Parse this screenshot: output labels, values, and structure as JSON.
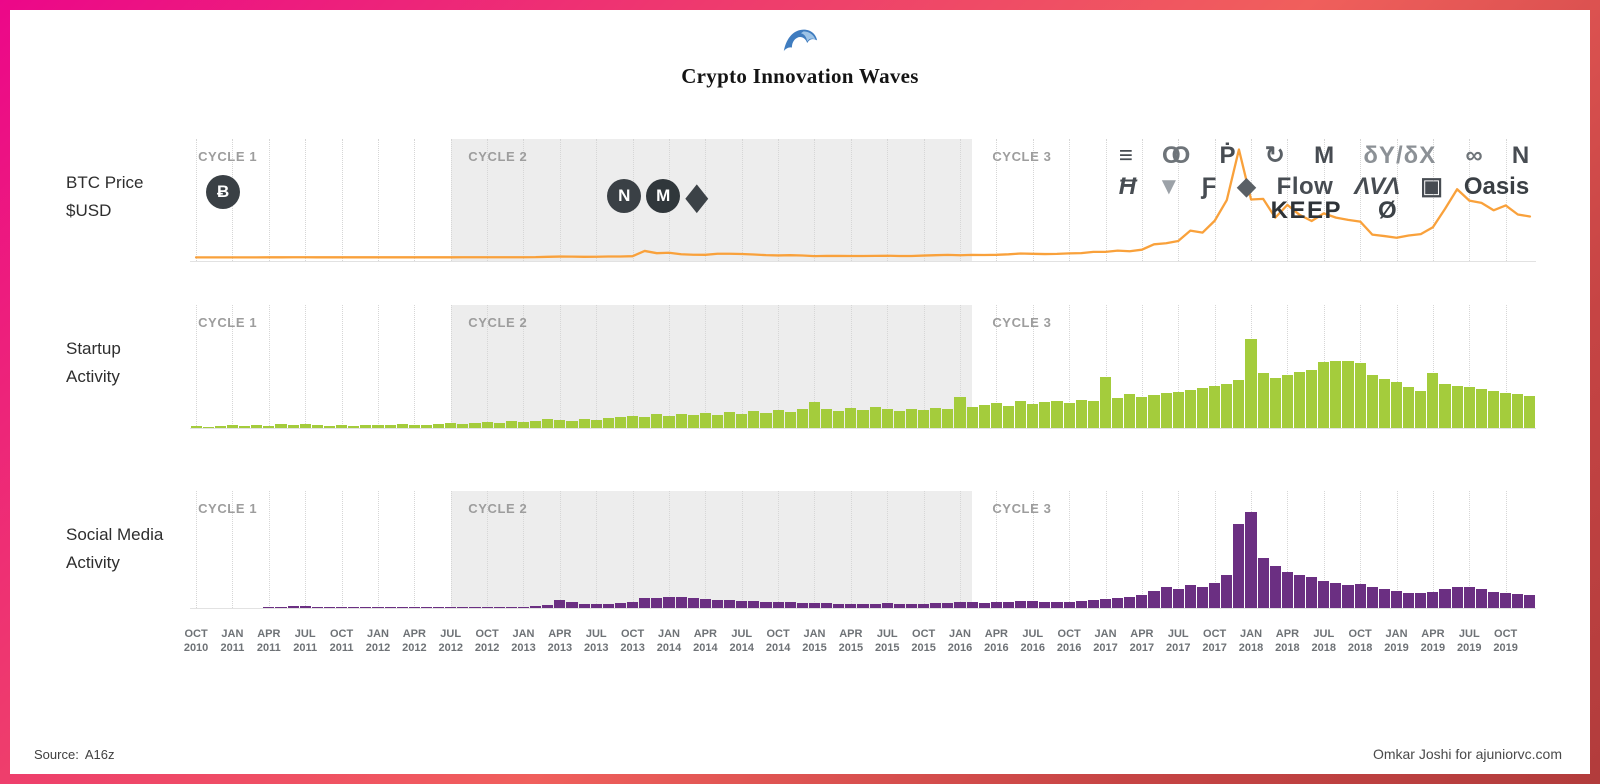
{
  "title": "Crypto Innovation Waves",
  "footer": {
    "source_label": "Source:",
    "source_value": "A16z",
    "credit": "Omkar Joshi for ajuniorvc.com"
  },
  "colors": {
    "btc_line": "#F9A13B",
    "startup_bar": "#A4CC3C",
    "social_bar": "#6B2F82",
    "cycle_band": "#EDEDED",
    "cycle_label": "#9D9D9D",
    "grid": "#D6D6D6",
    "axis_text": "#6E7276"
  },
  "panels": [
    {
      "id": "btc",
      "label_lines": [
        "BTC Price",
        "$USD"
      ]
    },
    {
      "id": "startup",
      "label_lines": [
        "Startup",
        "Activity"
      ]
    },
    {
      "id": "social",
      "label_lines": [
        "Social Media",
        "Activity"
      ]
    }
  ],
  "cycles": {
    "labels": [
      "CYCLE 1",
      "CYCLE 2",
      "CYCLE 3"
    ],
    "band_start": "Jul 2012",
    "band_end": "Jan 2016",
    "band_start_month_index": 21,
    "band_end_month_index": 64
  },
  "x_axis": {
    "ticks": [
      {
        "month": "OCT",
        "year": "2010"
      },
      {
        "month": "JAN",
        "year": "2011"
      },
      {
        "month": "APR",
        "year": "2011"
      },
      {
        "month": "JUL",
        "year": "2011"
      },
      {
        "month": "OCT",
        "year": "2011"
      },
      {
        "month": "JAN",
        "year": "2012"
      },
      {
        "month": "APR",
        "year": "2012"
      },
      {
        "month": "JUL",
        "year": "2012"
      },
      {
        "month": "OCT",
        "year": "2012"
      },
      {
        "month": "JAN",
        "year": "2013"
      },
      {
        "month": "APR",
        "year": "2013"
      },
      {
        "month": "JUL",
        "year": "2013"
      },
      {
        "month": "OCT",
        "year": "2013"
      },
      {
        "month": "JAN",
        "year": "2014"
      },
      {
        "month": "APR",
        "year": "2014"
      },
      {
        "month": "JUL",
        "year": "2014"
      },
      {
        "month": "OCT",
        "year": "2014"
      },
      {
        "month": "JAN",
        "year": "2015"
      },
      {
        "month": "APR",
        "year": "2015"
      },
      {
        "month": "JUL",
        "year": "2015"
      },
      {
        "month": "OCT",
        "year": "2015"
      },
      {
        "month": "JAN",
        "year": "2016"
      },
      {
        "month": "APR",
        "year": "2016"
      },
      {
        "month": "JUL",
        "year": "2016"
      },
      {
        "month": "OCT",
        "year": "2016"
      },
      {
        "month": "JAN",
        "year": "2017"
      },
      {
        "month": "APR",
        "year": "2017"
      },
      {
        "month": "JUL",
        "year": "2017"
      },
      {
        "month": "OCT",
        "year": "2017"
      },
      {
        "month": "JAN",
        "year": "2018"
      },
      {
        "month": "APR",
        "year": "2018"
      },
      {
        "month": "JUL",
        "year": "2018"
      },
      {
        "month": "OCT",
        "year": "2018"
      },
      {
        "month": "JAN",
        "year": "2019"
      },
      {
        "month": "APR",
        "year": "2019"
      },
      {
        "month": "JUL",
        "year": "2019"
      },
      {
        "month": "OCT",
        "year": "2019"
      }
    ]
  },
  "icons": {
    "cycle1": [
      {
        "name": "bitcoin",
        "glyph": "Ƀ"
      }
    ],
    "cycle2": [
      {
        "name": "namecoin",
        "glyph": "N"
      },
      {
        "name": "monero",
        "glyph": "M"
      },
      {
        "name": "ethereum",
        "glyph": "◆"
      }
    ],
    "cycle3_rows": [
      [
        {
          "name": "stacks",
          "glyph": "≡"
        },
        {
          "name": "orchid",
          "glyph": "OO"
        },
        {
          "name": "polkadot",
          "glyph": "Ṗ"
        },
        {
          "name": "dfinity",
          "glyph": "↻"
        },
        {
          "name": "mina",
          "glyph": "M"
        },
        {
          "name": "dydx",
          "glyph": "δY/δX"
        },
        {
          "name": "infinity",
          "glyph": "∞"
        },
        {
          "name": "near",
          "glyph": "N"
        }
      ],
      [
        {
          "name": "handshake",
          "glyph": "Ħ"
        },
        {
          "name": "audius",
          "glyph": "▼"
        },
        {
          "name": "filecoin",
          "glyph": "Ƒ"
        },
        {
          "name": "keep-cube",
          "glyph": "◆"
        },
        {
          "name": "flow",
          "glyph": "Flow"
        },
        {
          "name": "avalanche",
          "glyph": "ΛVΛ"
        },
        {
          "name": "reserve",
          "glyph": "▣"
        },
        {
          "name": "oasis",
          "glyph": "Oasis"
        }
      ],
      [
        {
          "name": "keep",
          "glyph": "KEEP"
        },
        {
          "name": "slashed-o",
          "glyph": "Ø"
        }
      ]
    ]
  },
  "chart_data": [
    {
      "type": "line",
      "title": "BTC Price $USD",
      "x_start": "Oct 2010",
      "x_interval": "monthly",
      "ylabel": "BTC Price $USD",
      "ylim": [
        0,
        20000
      ],
      "grid": "vertical-dotted-quarterly",
      "values": [
        0.2,
        0.25,
        0.3,
        0.9,
        1,
        0.8,
        3,
        8.7,
        16,
        13,
        8,
        5,
        3.2,
        3,
        4.3,
        5.5,
        4.9,
        4.9,
        5,
        5.1,
        6.7,
        9.4,
        10,
        12.4,
        11.2,
        12.6,
        13.5,
        20,
        33,
        93,
        139,
        128,
        97,
        106,
        141,
        141,
        204,
        1130,
        732,
        806,
        550,
        458,
        445,
        627,
        635,
        589,
        506,
        388,
        338,
        378,
        320,
        217,
        254,
        244,
        236,
        230,
        263,
        284,
        230,
        236,
        314,
        377,
        430,
        368,
        437,
        416,
        448,
        531,
        673,
        624,
        575,
        610,
        700,
        745,
        964,
        970,
        1180,
        1080,
        1350,
        2300,
        2480,
        2875,
        4700,
        4360,
        6450,
        10100,
        19000,
        10200,
        10300,
        7000,
        9250,
        7500,
        6400,
        7750,
        7000,
        6600,
        6300,
        4000,
        3750,
        3450,
        3850,
        4100,
        5300,
        8550,
        12000,
        10000,
        9600,
        8300,
        9150,
        7550,
        7200
      ]
    },
    {
      "type": "bar",
      "title": "Startup Activity",
      "x_start": "Oct 2010",
      "x_interval": "monthly",
      "unit": "relative activity (max = 100)",
      "values": [
        2,
        1,
        2,
        3,
        2,
        3,
        2,
        4,
        3,
        4,
        3,
        2,
        3,
        2,
        3,
        3,
        3,
        4,
        3,
        3,
        4,
        6,
        5,
        6,
        7,
        6,
        8,
        7,
        8,
        10,
        9,
        8,
        10,
        9,
        11,
        12,
        14,
        12,
        16,
        14,
        16,
        15,
        17,
        15,
        18,
        16,
        19,
        17,
        20,
        18,
        22,
        29,
        22,
        19,
        23,
        20,
        24,
        21,
        19,
        22,
        20,
        23,
        21,
        35,
        24,
        26,
        28,
        25,
        30,
        27,
        29,
        31,
        28,
        32,
        30,
        58,
        34,
        38,
        35,
        37,
        39,
        41,
        43,
        45,
        47,
        50,
        54,
        100,
        62,
        57,
        60,
        63,
        66,
        74,
        76,
        76,
        73,
        60,
        55,
        52,
        46,
        42,
        62,
        50,
        48,
        46,
        44,
        42,
        40,
        38,
        36
      ]
    },
    {
      "type": "bar",
      "title": "Social Media Activity",
      "x_start": "Oct 2010",
      "x_interval": "monthly",
      "unit": "relative activity (max = 100)",
      "values": [
        0,
        0,
        0,
        0,
        0,
        0,
        1,
        1,
        2,
        2,
        1,
        1,
        1,
        1,
        1,
        1,
        1,
        1,
        1,
        1,
        1,
        1,
        1,
        1,
        1,
        1,
        1,
        1,
        2,
        3,
        8,
        6,
        4,
        4,
        4,
        5,
        6,
        10,
        10,
        12,
        11,
        10,
        9,
        8,
        8,
        7,
        7,
        6,
        6,
        6,
        5,
        5,
        5,
        4,
        4,
        4,
        4,
        5,
        4,
        4,
        4,
        5,
        5,
        6,
        6,
        5,
        6,
        6,
        7,
        7,
        6,
        6,
        6,
        7,
        8,
        9,
        10,
        12,
        14,
        18,
        22,
        20,
        24,
        22,
        26,
        34,
        88,
        100,
        52,
        44,
        38,
        34,
        32,
        28,
        26,
        24,
        25,
        22,
        20,
        18,
        16,
        16,
        17,
        20,
        22,
        22,
        20,
        17,
        16,
        15,
        14
      ]
    }
  ]
}
